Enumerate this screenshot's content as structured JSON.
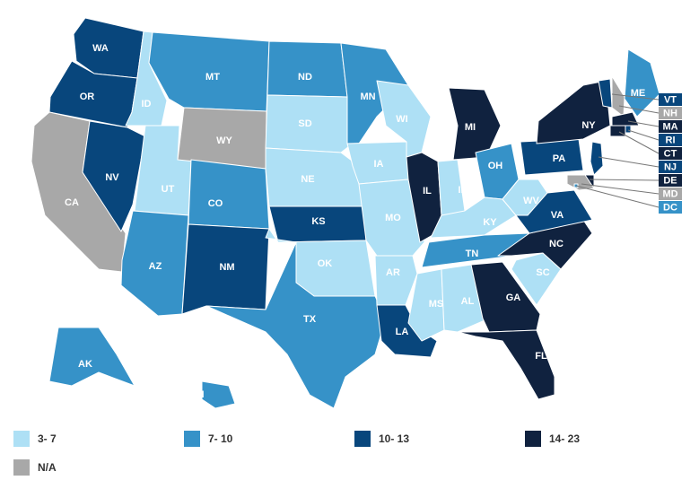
{
  "colors": {
    "c1": "#aee0f5",
    "c2": "#3692c8",
    "c3": "#08467c",
    "c4": "#10223f",
    "na": "#a8a8a8"
  },
  "legend": [
    {
      "label": "3- 7",
      "class": "c1"
    },
    {
      "label": "7- 10",
      "class": "c2"
    },
    {
      "label": "10- 13",
      "class": "c3"
    },
    {
      "label": "14- 23",
      "class": "c4"
    },
    {
      "label": "N/A",
      "class": "na"
    }
  ],
  "states": [
    {
      "abbr": "WA",
      "class": "c3"
    },
    {
      "abbr": "OR",
      "class": "c3"
    },
    {
      "abbr": "CA",
      "class": "na"
    },
    {
      "abbr": "ID",
      "class": "c1"
    },
    {
      "abbr": "NV",
      "class": "c3"
    },
    {
      "abbr": "UT",
      "class": "c1"
    },
    {
      "abbr": "AZ",
      "class": "c2"
    },
    {
      "abbr": "MT",
      "class": "c2"
    },
    {
      "abbr": "WY",
      "class": "na"
    },
    {
      "abbr": "CO",
      "class": "c2"
    },
    {
      "abbr": "NM",
      "class": "c3"
    },
    {
      "abbr": "ND",
      "class": "c2"
    },
    {
      "abbr": "SD",
      "class": "c1"
    },
    {
      "abbr": "NE",
      "class": "c1"
    },
    {
      "abbr": "KS",
      "class": "c3"
    },
    {
      "abbr": "OK",
      "class": "c1"
    },
    {
      "abbr": "TX",
      "class": "c2"
    },
    {
      "abbr": "MN",
      "class": "c2"
    },
    {
      "abbr": "IA",
      "class": "c1"
    },
    {
      "abbr": "MO",
      "class": "c1"
    },
    {
      "abbr": "AR",
      "class": "c1"
    },
    {
      "abbr": "LA",
      "class": "c3"
    },
    {
      "abbr": "WI",
      "class": "c1"
    },
    {
      "abbr": "IL",
      "class": "c4"
    },
    {
      "abbr": "MI",
      "class": "c4"
    },
    {
      "abbr": "IN",
      "class": "c1"
    },
    {
      "abbr": "OH",
      "class": "c2"
    },
    {
      "abbr": "KY",
      "class": "c1"
    },
    {
      "abbr": "TN",
      "class": "c2"
    },
    {
      "abbr": "MS",
      "class": "c1"
    },
    {
      "abbr": "AL",
      "class": "c1"
    },
    {
      "abbr": "GA",
      "class": "c4"
    },
    {
      "abbr": "FL",
      "class": "c4"
    },
    {
      "abbr": "SC",
      "class": "c1"
    },
    {
      "abbr": "NC",
      "class": "c4"
    },
    {
      "abbr": "VA",
      "class": "c3"
    },
    {
      "abbr": "WV",
      "class": "c1"
    },
    {
      "abbr": "PA",
      "class": "c3"
    },
    {
      "abbr": "NY",
      "class": "c4"
    },
    {
      "abbr": "ME",
      "class": "c2"
    },
    {
      "abbr": "AK",
      "class": "c2"
    },
    {
      "abbr": "HI",
      "class": "c2"
    },
    {
      "abbr": "VT",
      "class": "c3"
    },
    {
      "abbr": "NH",
      "class": "na"
    },
    {
      "abbr": "MA",
      "class": "c4"
    },
    {
      "abbr": "RI",
      "class": "c3"
    },
    {
      "abbr": "CT",
      "class": "c4"
    },
    {
      "abbr": "NJ",
      "class": "c3"
    },
    {
      "abbr": "DE",
      "class": "c4"
    },
    {
      "abbr": "MD",
      "class": "na"
    },
    {
      "abbr": "DC",
      "class": "c2"
    }
  ]
}
